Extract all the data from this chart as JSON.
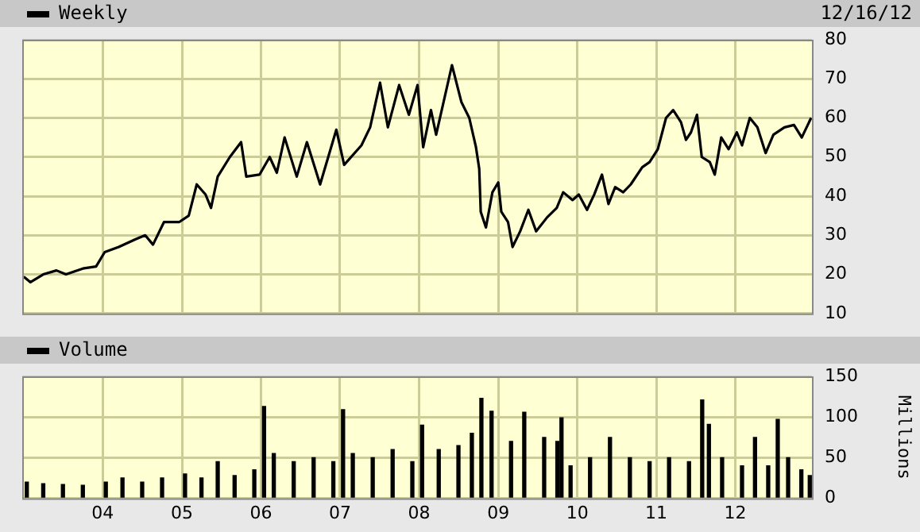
{
  "chart_data": [
    {
      "type": "line",
      "legend": "top left",
      "grid": true,
      "tick_labels": "y",
      "annotations": [
        "12/16/12"
      ],
      "xlim": [
        "2002-12-25",
        "2012-12-20"
      ],
      "xticks": [
        {
          "value": "2004-01-01",
          "label": null
        },
        {
          "value": "2005-01-01",
          "label": null
        },
        {
          "value": "2006-01-01",
          "label": null
        },
        {
          "value": "2007-01-01",
          "label": null
        },
        {
          "value": "2008-01-01",
          "label": null
        },
        {
          "value": "2009-01-01",
          "label": null
        },
        {
          "value": "2010-01-01",
          "label": null
        },
        {
          "value": "2011-01-01",
          "label": null
        },
        {
          "value": "2012-01-01",
          "label": null
        }
      ],
      "ylim": [
        10,
        80
      ],
      "yticks": [
        10,
        20,
        30,
        40,
        50,
        60,
        70,
        80
      ],
      "x": [
        "2003-01-01",
        "2003-02-01",
        "2003-04-01",
        "2003-06-01",
        "2003-07-15",
        "2003-10-01",
        "2003-12-01",
        "2004-01-10",
        "2004-03-15",
        "2004-06-01",
        "2004-07-15",
        "2004-08-20",
        "2004-10-10",
        "2004-12-20",
        "2005-02-01",
        "2005-03-10",
        "2005-04-20",
        "2005-05-15",
        "2005-06-15",
        "2005-08-10",
        "2005-10-01",
        "2005-10-25",
        "2005-12-25",
        "2006-02-10",
        "2006-03-15",
        "2006-04-20",
        "2006-06-15",
        "2006-08-01",
        "2006-10-01",
        "2006-12-15",
        "2007-01-20",
        "2007-04-10",
        "2007-05-20",
        "2007-07-05",
        "2007-08-10",
        "2007-10-01",
        "2007-11-15",
        "2007-12-25",
        "2008-01-20",
        "2008-02-25",
        "2008-03-20",
        "2008-06-01",
        "2008-07-15",
        "2008-08-20",
        "2008-09-20",
        "2008-10-05",
        "2008-10-12",
        "2008-11-05",
        "2008-12-05",
        "2009-01-01",
        "2009-01-15",
        "2009-02-15",
        "2009-03-08",
        "2009-04-12",
        "2009-05-20",
        "2009-06-25",
        "2009-08-15",
        "2009-09-28",
        "2009-10-28",
        "2009-12-10",
        "2010-01-08",
        "2010-02-15",
        "2010-03-20",
        "2010-04-25",
        "2010-05-25",
        "2010-06-25",
        "2010-08-01",
        "2010-09-05",
        "2010-10-28",
        "2010-12-01",
        "2011-01-08",
        "2011-02-15",
        "2011-03-20",
        "2011-04-25",
        "2011-05-18",
        "2011-06-10",
        "2011-07-08",
        "2011-07-30",
        "2011-09-05",
        "2011-09-28",
        "2011-10-28",
        "2011-12-01",
        "2012-01-08",
        "2012-02-01",
        "2012-03-08",
        "2012-04-12",
        "2012-05-20",
        "2012-06-25",
        "2012-08-15",
        "2012-09-28",
        "2012-11-03",
        "2012-12-16"
      ],
      "series": [
        {
          "name": "Weekly",
          "color": "#000000",
          "values": [
            19.4,
            18,
            20,
            21,
            20,
            21.5,
            22,
            25.7,
            27,
            29,
            30,
            27.6,
            33.4,
            33.4,
            35,
            43,
            40.4,
            37,
            45,
            50,
            53.8,
            45,
            45.5,
            50,
            46,
            55,
            45,
            53.8,
            43,
            57,
            48,
            53,
            57.6,
            69,
            57.6,
            68.4,
            60.8,
            68.4,
            52.5,
            62,
            55.7,
            73.5,
            64,
            60,
            52.5,
            47,
            36,
            32,
            41,
            43.5,
            36,
            33.4,
            27,
            31,
            36.5,
            31,
            34.6,
            37,
            41,
            39,
            40.4,
            36.5,
            40.4,
            45.5,
            38,
            42.3,
            41,
            43,
            47.4,
            48.7,
            52,
            60,
            62,
            58.9,
            54.4,
            56.3,
            60.8,
            50,
            48.7,
            45.5,
            55,
            52,
            56.3,
            53,
            60,
            57.6,
            51,
            55.7,
            57.6,
            58.2,
            55,
            60
          ]
        }
      ]
    },
    {
      "type": "bar",
      "legend": "top left",
      "grid": true,
      "ylabel": "Millions",
      "xlim": [
        "2002-12-25",
        "2012-12-20"
      ],
      "xticks": [
        {
          "value": "2004-01-01",
          "label": "04"
        },
        {
          "value": "2005-01-01",
          "label": "05"
        },
        {
          "value": "2006-01-01",
          "label": "06"
        },
        {
          "value": "2007-01-01",
          "label": "07"
        },
        {
          "value": "2008-01-01",
          "label": "08"
        },
        {
          "value": "2009-01-01",
          "label": "09"
        },
        {
          "value": "2010-01-01",
          "label": "10"
        },
        {
          "value": "2011-01-01",
          "label": "11"
        },
        {
          "value": "2012-01-01",
          "label": "12"
        }
      ],
      "ylim": [
        0,
        150
      ],
      "yticks": [
        0,
        50,
        100,
        150
      ],
      "x": [
        "2003-01-15",
        "2003-04-01",
        "2003-07-01",
        "2003-10-01",
        "2004-01-15",
        "2004-04-01",
        "2004-07-01",
        "2004-10-01",
        "2005-01-15",
        "2005-04-01",
        "2005-06-15",
        "2005-09-01",
        "2005-12-01",
        "2006-01-15",
        "2006-03-01",
        "2006-06-01",
        "2006-09-01",
        "2006-12-01",
        "2007-01-15",
        "2007-03-01",
        "2007-06-01",
        "2007-09-01",
        "2007-12-01",
        "2008-01-15",
        "2008-04-01",
        "2008-07-01",
        "2008-09-01",
        "2008-10-15",
        "2008-12-01",
        "2009-03-01",
        "2009-05-01",
        "2009-08-01",
        "2009-10-01",
        "2009-10-20",
        "2009-12-01",
        "2010-03-01",
        "2010-06-01",
        "2010-09-01",
        "2010-12-01",
        "2011-03-01",
        "2011-06-01",
        "2011-08-01",
        "2011-09-01",
        "2011-11-01",
        "2012-02-01",
        "2012-04-01",
        "2012-06-01",
        "2012-07-15",
        "2012-09-01",
        "2012-11-01",
        "2012-12-10"
      ],
      "series": [
        {
          "name": "Volume",
          "color": "#000000",
          "values": [
            20,
            18,
            17,
            16,
            20,
            25,
            20,
            25,
            30,
            25,
            45,
            28,
            35,
            113,
            55,
            45,
            50,
            45,
            109,
            55,
            50,
            60,
            45,
            90,
            60,
            65,
            80,
            123,
            107,
            70,
            106,
            75,
            70,
            99,
            40,
            50,
            75,
            50,
            45,
            50,
            45,
            121,
            91,
            50,
            40,
            75,
            40,
            97,
            50,
            35,
            28
          ]
        }
      ]
    }
  ]
}
